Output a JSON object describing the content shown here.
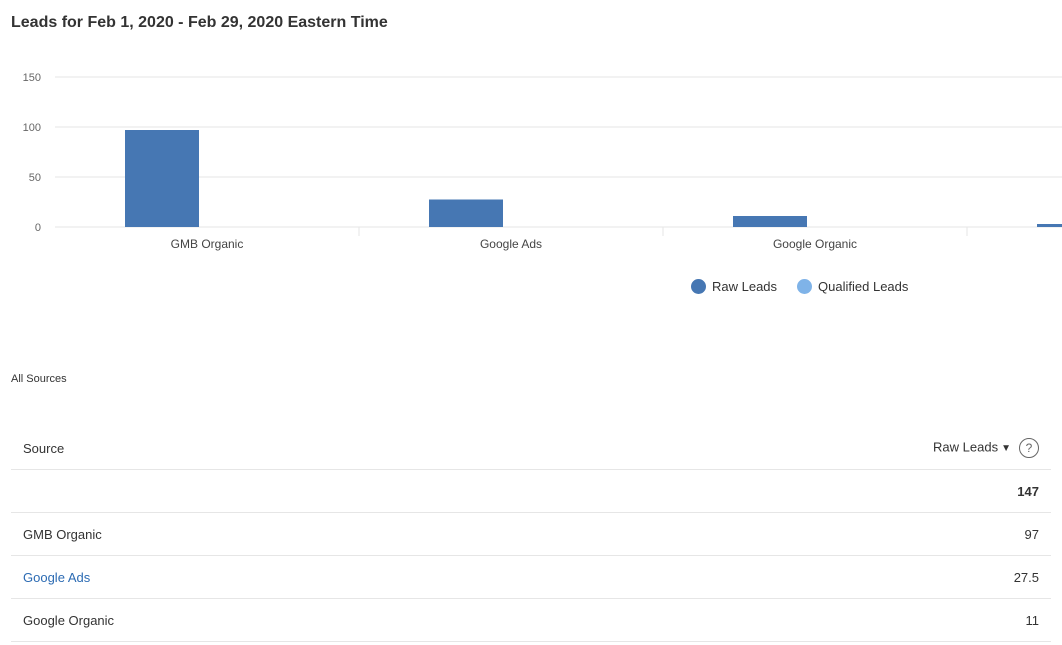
{
  "page": {
    "title": "Leads for Feb 1, 2020 - Feb 29, 2020 Eastern Time"
  },
  "colors": {
    "raw_leads": "#4677b3",
    "qualified_leads": "#7fb3e8",
    "link": "#2c6bb3",
    "grid": "#e6e6e6"
  },
  "chart_data": {
    "type": "bar",
    "categories": [
      "GMB Organic",
      "Google Ads",
      "Google Organic",
      ""
    ],
    "series": [
      {
        "name": "Raw Leads",
        "values": [
          97,
          27.5,
          11,
          3
        ]
      },
      {
        "name": "Qualified Leads",
        "values": [
          0,
          0,
          0,
          0
        ]
      }
    ],
    "ylim": [
      0,
      150
    ],
    "yticks": [
      0,
      50,
      100,
      150
    ],
    "grid": true,
    "legend_position": "bottom"
  },
  "legend": {
    "raw_leads": "Raw Leads",
    "qualified_leads": "Qualified Leads"
  },
  "section": {
    "label": "All Sources"
  },
  "table": {
    "headers": {
      "source": "Source",
      "raw_leads": "Raw Leads",
      "sort_icon": "▼",
      "help_icon": "?"
    },
    "total": "147",
    "rows": [
      {
        "source": "GMB Organic",
        "raw_leads": "97"
      },
      {
        "source": "Google Ads",
        "raw_leads": "27.5"
      },
      {
        "source": "Google Organic",
        "raw_leads": "11"
      }
    ]
  }
}
